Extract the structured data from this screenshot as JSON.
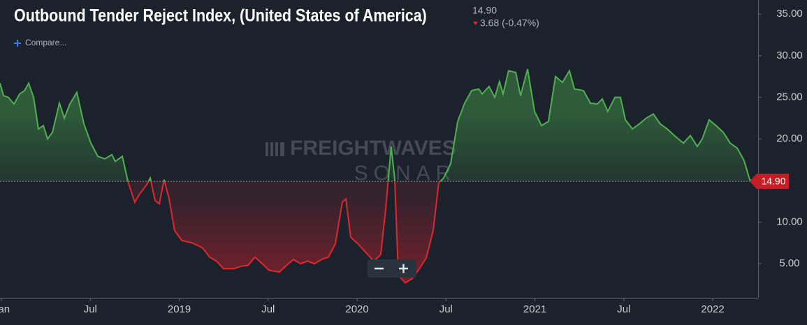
{
  "chart_data": {
    "type": "line",
    "title": "Outbound Tender Reject Index, (United States of America)",
    "current": {
      "value": 14.9,
      "label": "14.90"
    },
    "change_label": "3.68 (-0.47%)",
    "compare_label": "Compare...",
    "watermark": [
      "FREIGHTWAVES",
      "SONAR"
    ],
    "color_above": "#4fb04f",
    "color_below": "#e0262f",
    "x": [
      2017.992,
      2018.012,
      2018.039,
      2018.071,
      2018.102,
      2018.13,
      2018.153,
      2018.181,
      2018.208,
      2018.236,
      2018.259,
      2018.287,
      2018.326,
      2018.354,
      2018.385,
      2018.424,
      2018.464,
      2018.503,
      2018.542,
      2018.582,
      2018.621,
      2018.64,
      2018.68,
      2018.711,
      2018.75,
      2018.778,
      2018.817,
      2018.837,
      2018.864,
      2018.888,
      2018.915,
      2018.943,
      2018.974,
      2019.014,
      2019.073,
      2019.131,
      2019.171,
      2019.21,
      2019.249,
      2019.308,
      2019.348,
      2019.387,
      2019.426,
      2019.466,
      2019.505,
      2019.564,
      2019.603,
      2019.642,
      2019.682,
      2019.721,
      2019.76,
      2019.8,
      2019.839,
      2019.878,
      2019.917,
      2019.937,
      2019.964,
      2020.004,
      2020.043,
      2020.094,
      2020.133,
      2020.161,
      2020.192,
      2020.212,
      2020.232,
      2020.271,
      2020.31,
      2020.35,
      2020.389,
      2020.428,
      2020.459,
      2020.487,
      2020.526,
      2020.566,
      2020.605,
      2020.644,
      2020.684,
      2020.703,
      2020.742,
      2020.774,
      2020.801,
      2020.821,
      2020.852,
      2020.892,
      2020.919,
      2020.959,
      2020.998,
      2021.037,
      2021.076,
      2021.116,
      2021.155,
      2021.194,
      2021.222,
      2021.273,
      2021.312,
      2021.351,
      2021.379,
      2021.41,
      2021.45,
      2021.481,
      2021.509,
      2021.548,
      2021.587,
      2021.626,
      2021.666,
      2021.705,
      2021.744,
      2021.784,
      2021.835,
      2021.874,
      2021.913,
      2021.941,
      2021.98,
      2022.019,
      2022.059,
      2022.098,
      2022.137,
      2022.176,
      2022.208,
      2022.228
    ],
    "values": [
      26.7,
      25.2,
      25.0,
      24.2,
      25.4,
      25.8,
      26.7,
      25.0,
      21.2,
      21.6,
      20.0,
      20.8,
      24.3,
      22.5,
      24.2,
      25.6,
      21.8,
      19.5,
      17.9,
      17.6,
      18.1,
      17.3,
      17.9,
      14.9,
      12.4,
      13.4,
      14.5,
      15.3,
      12.6,
      12.2,
      15.1,
      12.8,
      9.0,
      7.8,
      7.5,
      6.9,
      5.8,
      5.3,
      4.4,
      4.4,
      4.7,
      4.8,
      5.8,
      5.0,
      4.2,
      4.0,
      4.8,
      5.5,
      5.0,
      5.3,
      5.0,
      5.5,
      5.8,
      7.4,
      12.4,
      12.8,
      8.2,
      7.4,
      6.5,
      5.3,
      6.1,
      11.6,
      19.1,
      15.1,
      3.6,
      2.7,
      3.2,
      4.4,
      5.7,
      9.0,
      14.7,
      15.3,
      17.0,
      22.1,
      24.3,
      25.8,
      26.0,
      25.4,
      26.3,
      25.0,
      26.9,
      25.4,
      28.2,
      28.0,
      25.2,
      28.4,
      23.3,
      21.6,
      22.1,
      27.5,
      26.8,
      28.2,
      26.0,
      25.8,
      24.3,
      24.2,
      24.8,
      23.3,
      25.0,
      25.0,
      22.3,
      21.2,
      21.8,
      22.5,
      23.0,
      21.8,
      21.2,
      20.4,
      19.5,
      20.4,
      19.1,
      20.0,
      22.3,
      21.6,
      20.8,
      19.5,
      18.9,
      17.4,
      15.1,
      14.9
    ],
    "xlim": [
      2017.992,
      2022.255
    ],
    "xticks": [
      {
        "value": 2018,
        "label": "Jan"
      },
      {
        "value": 2018.5,
        "label": "Jul"
      },
      2019,
      {
        "value": 2019.5,
        "label": "Jul"
      },
      2020,
      {
        "value": 2020.5,
        "label": "Jul"
      },
      2021,
      {
        "value": 2021.5,
        "label": "Jul"
      },
      2022
    ],
    "ylim": [
      0.9,
      36.7
    ],
    "yticks": [
      {
        "value": 5,
        "label": "5.00"
      },
      {
        "value": 10,
        "label": "10.00"
      },
      {
        "value": 20,
        "label": "20.00"
      },
      {
        "value": 25,
        "label": "25.00"
      },
      {
        "value": 30,
        "label": "30.00"
      },
      {
        "value": 35,
        "label": "35.00"
      }
    ]
  }
}
